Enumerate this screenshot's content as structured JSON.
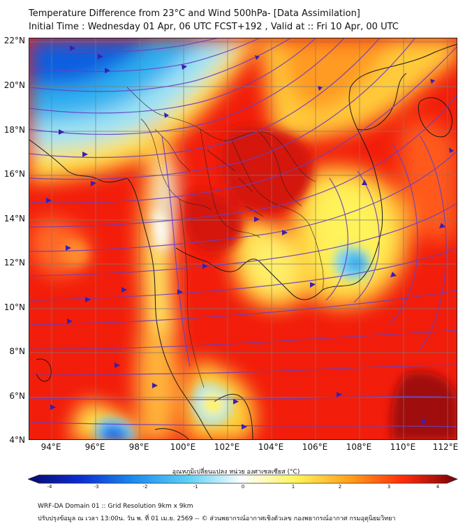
{
  "header": {
    "title_line1": "Temperature Difference from 23°C and Wind 500hPa- [Data Assimilation]",
    "title_line2": "Initial Time : Wednesday 01 Apr, 06 UTC FCST+192 , Valid at ::  Fri 10 Apr, 00 UTC"
  },
  "map": {
    "lat_labels": [
      "22°N",
      "20°N",
      "18°N",
      "16°N",
      "14°N",
      "12°N",
      "10°N",
      "8°N",
      "6°N",
      "4°N"
    ],
    "lon_labels": [
      "94°E",
      "96°E",
      "98°E",
      "100°E",
      "102°E",
      "104°E",
      "106°E",
      "108°E",
      "110°E",
      "112°E"
    ],
    "lat_range": [
      4,
      22
    ],
    "lon_range": [
      93,
      112.5
    ],
    "background_color": "#f21d0b",
    "streamline_color": "#6a3fc0",
    "arrow_color": "#3a1fb0",
    "coastline_color": "#1a1a1a",
    "grid_color": "#7a7a7a"
  },
  "colorbar": {
    "caption": "อุณหภูมิเปลี่ยนแปลง หน่วย องศาเซลเซียส (°C)",
    "ticks": [
      "-4",
      "-3",
      "-2",
      "-1",
      "0",
      "1",
      "2",
      "3",
      "4"
    ],
    "range": [
      -4,
      4
    ],
    "colors": [
      "#0a0a6e",
      "#0b2ed4",
      "#1c8ef0",
      "#5fd1f5",
      "#ffffff",
      "#fff35a",
      "#ff9f1a",
      "#ff2a0a",
      "#7a0008"
    ]
  },
  "footer": {
    "line1": "WRF-DA Domain 01 :: Grid Resolution 9km x 9km",
    "line2": "ปรับปรุงข้อมูล ณ เวลา 13:00น. วัน พ. ที่ 01 เม.ย. 2569 -- © ส่วนพยากรณ์อากาศเชิงตัวเลข กองพยากรณ์อากาศ กรมอุตุนิยมวิทยา"
  }
}
